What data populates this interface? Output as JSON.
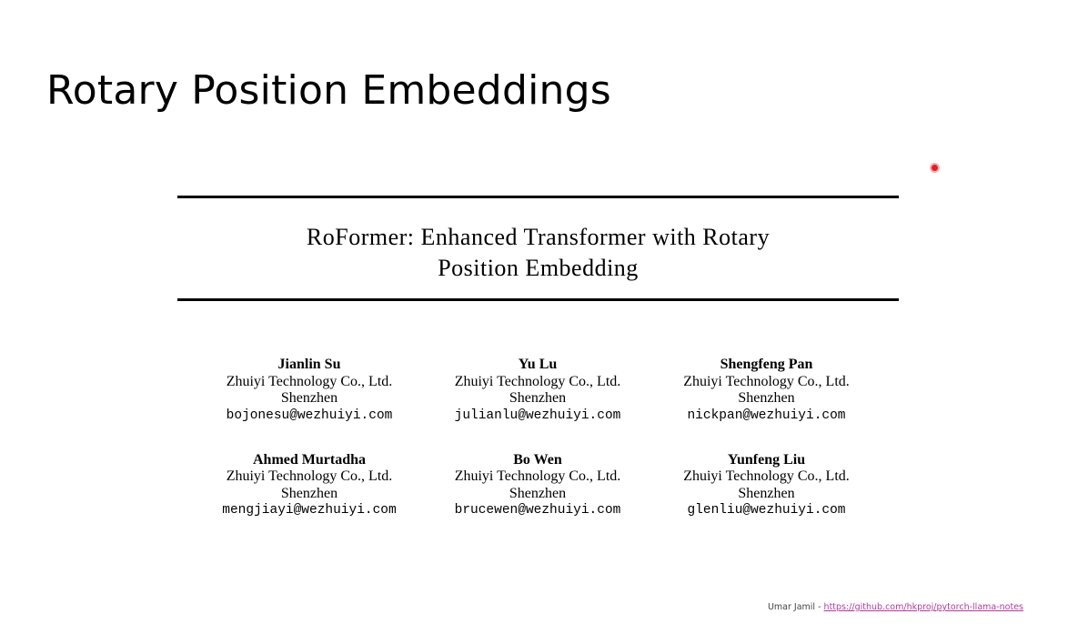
{
  "slide": {
    "title": "Rotary Position Embeddings"
  },
  "paper": {
    "title_line1": "RoFormer: Enhanced Transformer with Rotary",
    "title_line2": "Position Embedding"
  },
  "authors": [
    {
      "name": "Jianlin Su",
      "affiliation": "Zhuiyi Technology Co., Ltd.",
      "city": "Shenzhen",
      "email": "bojonesu@wezhuiyi.com"
    },
    {
      "name": "Yu Lu",
      "affiliation": "Zhuiyi Technology Co., Ltd.",
      "city": "Shenzhen",
      "email": "julianlu@wezhuiyi.com"
    },
    {
      "name": "Shengfeng Pan",
      "affiliation": "Zhuiyi Technology Co., Ltd.",
      "city": "Shenzhen",
      "email": "nickpan@wezhuiyi.com"
    },
    {
      "name": "Ahmed Murtadha",
      "affiliation": "Zhuiyi Technology Co., Ltd.",
      "city": "Shenzhen",
      "email": "mengjiayi@wezhuiyi.com"
    },
    {
      "name": "Bo Wen",
      "affiliation": "Zhuiyi Technology Co., Ltd.",
      "city": "Shenzhen",
      "email": "brucewen@wezhuiyi.com"
    },
    {
      "name": "Yunfeng Liu",
      "affiliation": "Zhuiyi Technology Co., Ltd.",
      "city": "Shenzhen",
      "email": "glenliu@wezhuiyi.com"
    }
  ],
  "footer": {
    "author": "Umar Jamil - ",
    "link_text": "https://github.com/hkproj/pytorch-llama-notes"
  },
  "colors": {
    "laser_pointer": "#e0202a",
    "link": "#b23aa0"
  }
}
